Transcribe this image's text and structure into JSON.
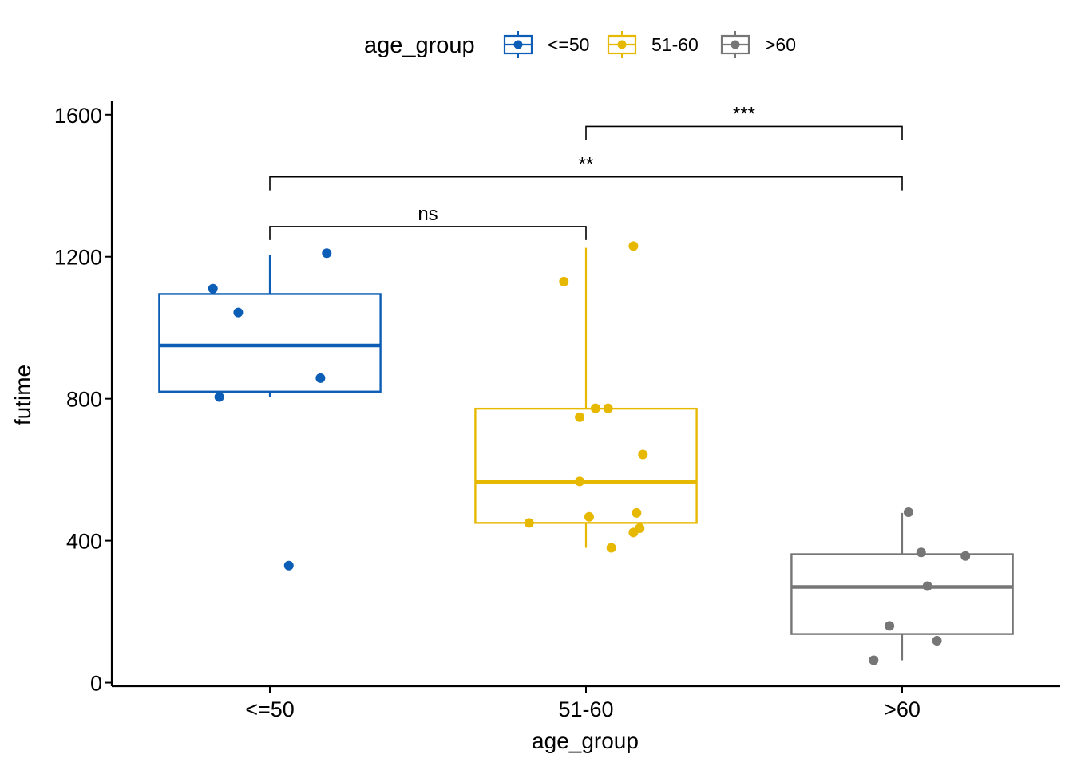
{
  "chart_data": {
    "type": "box",
    "xlabel": "age_group",
    "ylabel": "futime",
    "categories": [
      "<=50",
      "51-60",
      ">60"
    ],
    "ylim": [
      -10,
      1640
    ],
    "yticks": [
      0,
      400,
      800,
      1200,
      1600
    ],
    "grid": false,
    "legend": {
      "title": "age_group",
      "placement": "top",
      "entries": [
        "<=50",
        "51-60",
        ">60"
      ]
    },
    "colors": [
      "#0C5DB5",
      "#E7B800",
      "#767676"
    ],
    "series": [
      {
        "name": "<=50",
        "box": {
          "lower_whisker": 805,
          "q1": 820,
          "median": 950,
          "q3": 1095,
          "upper_whisker": 1205
        },
        "points": [
          {
            "x_jitter": -0.18,
            "y": 1110
          },
          {
            "x_jitter": -0.1,
            "y": 1043
          },
          {
            "x_jitter": 0.18,
            "y": 1210
          },
          {
            "x_jitter": 0.16,
            "y": 858
          },
          {
            "x_jitter": -0.16,
            "y": 805
          },
          {
            "x_jitter": 0.06,
            "y": 330
          }
        ]
      },
      {
        "name": "51-60",
        "box": {
          "lower_whisker": 380,
          "q1": 450,
          "median": 565,
          "q3": 772,
          "upper_whisker": 1225
        },
        "points": [
          {
            "x_jitter": 0.15,
            "y": 1230
          },
          {
            "x_jitter": -0.07,
            "y": 1130
          },
          {
            "x_jitter": 0.03,
            "y": 773
          },
          {
            "x_jitter": 0.07,
            "y": 773
          },
          {
            "x_jitter": -0.02,
            "y": 748
          },
          {
            "x_jitter": 0.18,
            "y": 643
          },
          {
            "x_jitter": -0.02,
            "y": 567
          },
          {
            "x_jitter": 0.16,
            "y": 478
          },
          {
            "x_jitter": 0.01,
            "y": 467
          },
          {
            "x_jitter": -0.18,
            "y": 450
          },
          {
            "x_jitter": 0.17,
            "y": 435
          },
          {
            "x_jitter": 0.15,
            "y": 423
          },
          {
            "x_jitter": 0.08,
            "y": 380
          }
        ]
      },
      {
        "name": ">60",
        "box": {
          "lower_whisker": 63,
          "q1": 137,
          "median": 270,
          "q3": 362,
          "upper_whisker": 478
        },
        "points": [
          {
            "x_jitter": 0.02,
            "y": 480
          },
          {
            "x_jitter": 0.06,
            "y": 367
          },
          {
            "x_jitter": 0.2,
            "y": 357
          },
          {
            "x_jitter": 0.08,
            "y": 272
          },
          {
            "x_jitter": -0.04,
            "y": 160
          },
          {
            "x_jitter": 0.11,
            "y": 118
          },
          {
            "x_jitter": -0.09,
            "y": 63
          }
        ]
      }
    ],
    "annotations": [
      {
        "from": 0,
        "to": 1,
        "y": 1285,
        "label": "ns"
      },
      {
        "from": 0,
        "to": 2,
        "y": 1425,
        "label": "**"
      },
      {
        "from": 1,
        "to": 2,
        "y": 1567,
        "label": "***"
      }
    ]
  }
}
